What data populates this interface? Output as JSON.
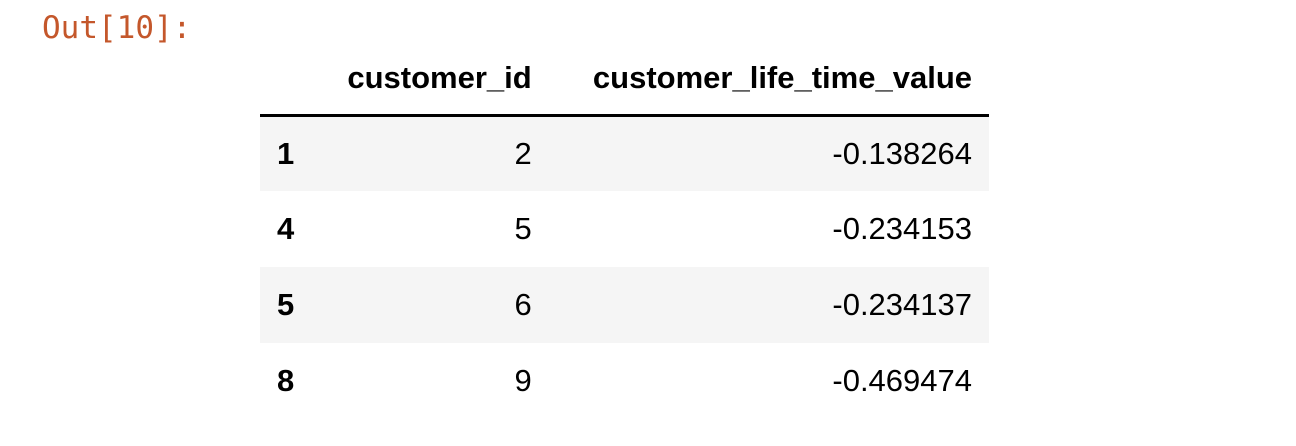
{
  "cell": {
    "prompt": "Out[10]:"
  },
  "table": {
    "columns": [
      "",
      "customer_id",
      "customer_life_time_value"
    ],
    "rows": [
      {
        "index": "1",
        "customer_id": "2",
        "customer_life_time_value": "-0.138264"
      },
      {
        "index": "4",
        "customer_id": "5",
        "customer_life_time_value": "-0.234153"
      },
      {
        "index": "5",
        "customer_id": "6",
        "customer_life_time_value": "-0.234137"
      },
      {
        "index": "8",
        "customer_id": "9",
        "customer_life_time_value": "-0.469474"
      }
    ]
  },
  "colors": {
    "prompt": "#c4572b",
    "stripe": "#f5f5f5",
    "text": "#000000"
  }
}
